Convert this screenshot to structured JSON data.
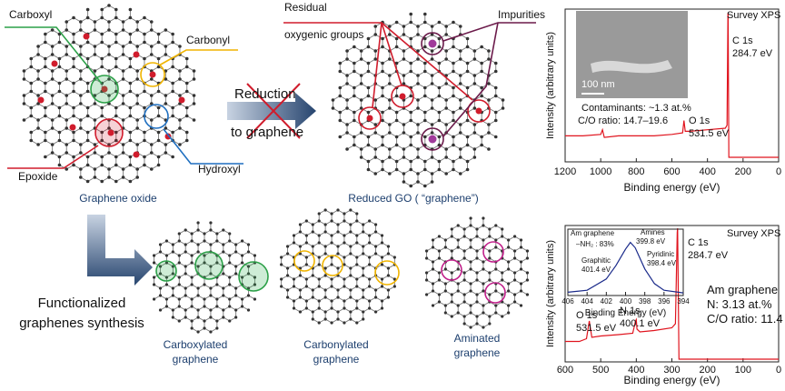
{
  "diagram": {
    "go_labels": {
      "carboxyl": "Carboxyl",
      "carbonyl": "Carbonyl",
      "epoxide": "Epoxide",
      "hydroxyl": "Hydroxyl",
      "caption": "Graphene oxide"
    },
    "arrow": {
      "line1": "Reduction",
      "line2": "to graphene"
    },
    "rgo_labels": {
      "residual_1": "Residual",
      "residual_2": "oxygenic groups",
      "impurities": "Impurities",
      "caption": "Reduced GO ( “graphene”)"
    },
    "functionalized": {
      "line1": "Functionalized",
      "line2": "graphenes synthesis"
    },
    "products": [
      {
        "line1": "Carboxylated",
        "line2": "graphene"
      },
      {
        "line1": "Carbonylated",
        "line2": "graphene"
      },
      {
        "line1": "Aminated",
        "line2": "graphene"
      }
    ]
  },
  "chart_data": [
    {
      "type": "line",
      "color": "#e0141e",
      "x": [
        1200,
        1100,
        1000,
        990,
        980,
        900,
        800,
        700,
        600,
        540,
        532,
        525,
        500,
        400,
        300,
        290,
        285,
        284,
        280,
        270,
        200,
        100,
        0
      ],
      "values": [
        17,
        17,
        18,
        21,
        16,
        17,
        17,
        17,
        18,
        19,
        27,
        20,
        20,
        21,
        22,
        24,
        97,
        97,
        3,
        3,
        3,
        3,
        3
      ],
      "xlim": [
        1200,
        0
      ],
      "ylim": [
        0,
        100
      ],
      "xticks": [
        1200,
        1000,
        800,
        600,
        400,
        200,
        0
      ],
      "xlabel": "Binding energy (eV)",
      "ylabel": "Intensity (arbitrary units)",
      "annotations": [
        "Survey XPS",
        "C 1s",
        "284.7 eV",
        "O 1s",
        "531.5 eV",
        "Contaminants: ~1.3 at.%",
        "C/O ratio: 14.7–19.6",
        "100 nm"
      ]
    },
    {
      "type": "line",
      "color": "#e0141e",
      "x": [
        600,
        560,
        540,
        532,
        525,
        500,
        450,
        410,
        402,
        400,
        398,
        390,
        350,
        300,
        290,
        285,
        284,
        280,
        270,
        200,
        100,
        0
      ],
      "values": [
        15,
        15,
        17,
        30,
        18,
        19,
        20,
        21,
        30,
        31,
        24,
        22,
        23,
        25,
        28,
        95,
        98,
        2,
        2,
        2,
        2,
        2
      ],
      "xlim": [
        600,
        0
      ],
      "ylim": [
        0,
        100
      ],
      "xticks": [
        600,
        500,
        400,
        300,
        200,
        100,
        0
      ],
      "xlabel": "Binding energy (eV)",
      "ylabel": "Intensity (arbitrary units)",
      "annotations": [
        "Survey XPS",
        "C 1s",
        "284.7 eV",
        "O 1s",
        "531.5 eV",
        "N 1s",
        "400.1 eV",
        "Am graphene",
        "N: 3.13 at.%",
        "C/O ratio: 11.4"
      ]
    },
    {
      "type": "line",
      "color": "#1a2a8a",
      "x": [
        406,
        404,
        402,
        401,
        400,
        399.5,
        399,
        398,
        397,
        396,
        394
      ],
      "values": [
        5,
        8,
        25,
        45,
        70,
        80,
        72,
        40,
        18,
        8,
        4
      ],
      "xlim": [
        406,
        394
      ],
      "ylim": [
        0,
        100
      ],
      "xticks": [
        406,
        404,
        402,
        400,
        398,
        396,
        394
      ],
      "xlabel": "Binding Energy (eV)",
      "annotations": [
        "Am graphene",
        "–NH₂ : 83%",
        "Amines",
        "399.8 eV",
        "Pyridinic",
        "398.4 eV",
        "Graphitic",
        "401.4 eV"
      ]
    }
  ]
}
